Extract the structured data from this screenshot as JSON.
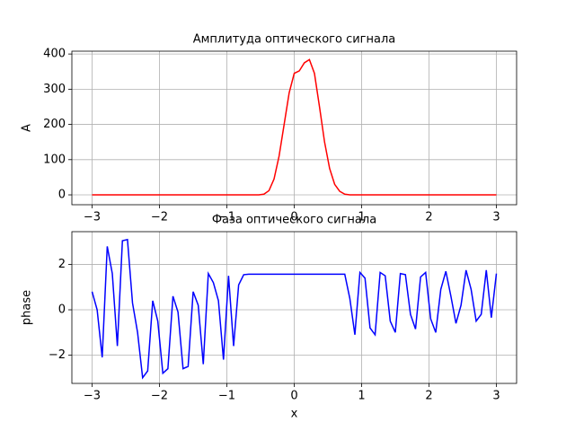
{
  "chart_data": [
    {
      "type": "line",
      "title": "Амплитуда оптического сигнала",
      "xlabel": "x",
      "ylabel": "A",
      "x": [
        -3,
        -2.925,
        -2.85,
        -2.775,
        -2.7,
        -2.625,
        -2.55,
        -2.475,
        -2.4,
        -2.325,
        -2.25,
        -2.175,
        -2.1,
        -2.025,
        -1.95,
        -1.875,
        -1.8,
        -1.725,
        -1.65,
        -1.575,
        -1.5,
        -1.425,
        -1.35,
        -1.275,
        -1.2,
        -1.125,
        -1.05,
        -0.975,
        -0.9,
        -0.825,
        -0.75,
        -0.675,
        -0.6,
        -0.525,
        -0.45,
        -0.375,
        -0.3,
        -0.225,
        -0.15,
        -0.075,
        0,
        0.075,
        0.15,
        0.225,
        0.3,
        0.375,
        0.45,
        0.525,
        0.6,
        0.675,
        0.75,
        0.825,
        0.9,
        0.975,
        1.05,
        1.125,
        1.2,
        1.275,
        1.35,
        1.425,
        1.5,
        1.575,
        1.65,
        1.725,
        1.8,
        1.875,
        1.95,
        2.025,
        2.1,
        2.175,
        2.25,
        2.325,
        2.4,
        2.475,
        2.55,
        2.625,
        2.7,
        2.775,
        2.85,
        2.925,
        3
      ],
      "series": [
        {
          "color": "#ff0000",
          "values": [
            0,
            0,
            0,
            0,
            0,
            0,
            0,
            0,
            0,
            0,
            0,
            0,
            0,
            0,
            0,
            0,
            0,
            0,
            0,
            0,
            0,
            0,
            0,
            0,
            0,
            0,
            0,
            0,
            0,
            0,
            0,
            0,
            0,
            0,
            2,
            12,
            45,
            110,
            200,
            290,
            345,
            352,
            375,
            384,
            345,
            250,
            150,
            75,
            30,
            10,
            2,
            0,
            0,
            0,
            0,
            0,
            0,
            0,
            0,
            0,
            0,
            0,
            0,
            0,
            0,
            0,
            0,
            0,
            0,
            0,
            0,
            0,
            0,
            0,
            0,
            0,
            0,
            0,
            0,
            0,
            0
          ]
        }
      ],
      "xlim": [
        -3.3,
        3.3
      ],
      "ylim": [
        -28,
        408
      ],
      "xticks": [
        {
          "value": -3,
          "label": "−3"
        },
        {
          "value": -2,
          "label": "−2"
        },
        {
          "value": -1,
          "label": "−1"
        },
        0,
        1,
        2,
        3
      ],
      "yticks": [
        0,
        100,
        200,
        300,
        400
      ],
      "grid": true
    },
    {
      "type": "line",
      "title": "Фаза оптического сигнала",
      "xlabel": "x",
      "ylabel": "phase",
      "x": [
        -3,
        -2.925,
        -2.85,
        -2.775,
        -2.7,
        -2.625,
        -2.55,
        -2.475,
        -2.4,
        -2.325,
        -2.25,
        -2.175,
        -2.1,
        -2.025,
        -1.95,
        -1.875,
        -1.8,
        -1.725,
        -1.65,
        -1.575,
        -1.5,
        -1.425,
        -1.35,
        -1.275,
        -1.2,
        -1.125,
        -1.05,
        -0.975,
        -0.9,
        -0.825,
        -0.75,
        -0.675,
        -0.6,
        -0.525,
        -0.45,
        -0.375,
        -0.3,
        -0.225,
        -0.15,
        -0.075,
        0,
        0.075,
        0.15,
        0.225,
        0.3,
        0.375,
        0.45,
        0.525,
        0.6,
        0.675,
        0.75,
        0.825,
        0.9,
        0.975,
        1.05,
        1.125,
        1.2,
        1.275,
        1.35,
        1.425,
        1.5,
        1.575,
        1.65,
        1.725,
        1.8,
        1.875,
        1.95,
        2.025,
        2.1,
        2.175,
        2.25,
        2.325,
        2.4,
        2.475,
        2.55,
        2.625,
        2.7,
        2.775,
        2.85,
        2.925,
        3
      ],
      "series": [
        {
          "color": "#0000ff",
          "values": [
            0.8,
            0.0,
            -2.1,
            2.8,
            1.6,
            -1.6,
            3.05,
            3.1,
            0.3,
            -1.0,
            -3.0,
            -2.7,
            0.4,
            -0.5,
            -2.8,
            -2.6,
            0.6,
            -0.1,
            -2.6,
            -2.5,
            0.8,
            0.2,
            -2.4,
            1.6,
            1.2,
            0.4,
            -2.2,
            1.5,
            -1.6,
            1.1,
            1.55,
            1.57,
            1.57,
            1.57,
            1.57,
            1.57,
            1.57,
            1.57,
            1.57,
            1.57,
            1.57,
            1.57,
            1.57,
            1.57,
            1.57,
            1.57,
            1.57,
            1.57,
            1.57,
            1.57,
            1.57,
            0.5,
            -1.1,
            1.65,
            1.4,
            -0.8,
            -1.1,
            1.65,
            1.5,
            -0.5,
            -1.0,
            1.6,
            1.55,
            -0.2,
            -0.85,
            1.45,
            1.65,
            -0.4,
            -1.0,
            0.9,
            1.7,
            0.6,
            -0.6,
            0.2,
            1.75,
            0.9,
            -0.5,
            -0.2,
            1.75,
            -0.35,
            1.6
          ]
        }
      ],
      "xlim": [
        -3.3,
        3.3
      ],
      "ylim": [
        -3.25,
        3.45
      ],
      "xticks": [
        {
          "value": -3,
          "label": "−3"
        },
        {
          "value": -2,
          "label": "−2"
        },
        {
          "value": -1,
          "label": "−1"
        },
        0,
        1,
        2,
        3
      ],
      "yticks": [
        {
          "value": -2,
          "label": "−2"
        },
        0,
        2
      ],
      "grid": true
    }
  ]
}
